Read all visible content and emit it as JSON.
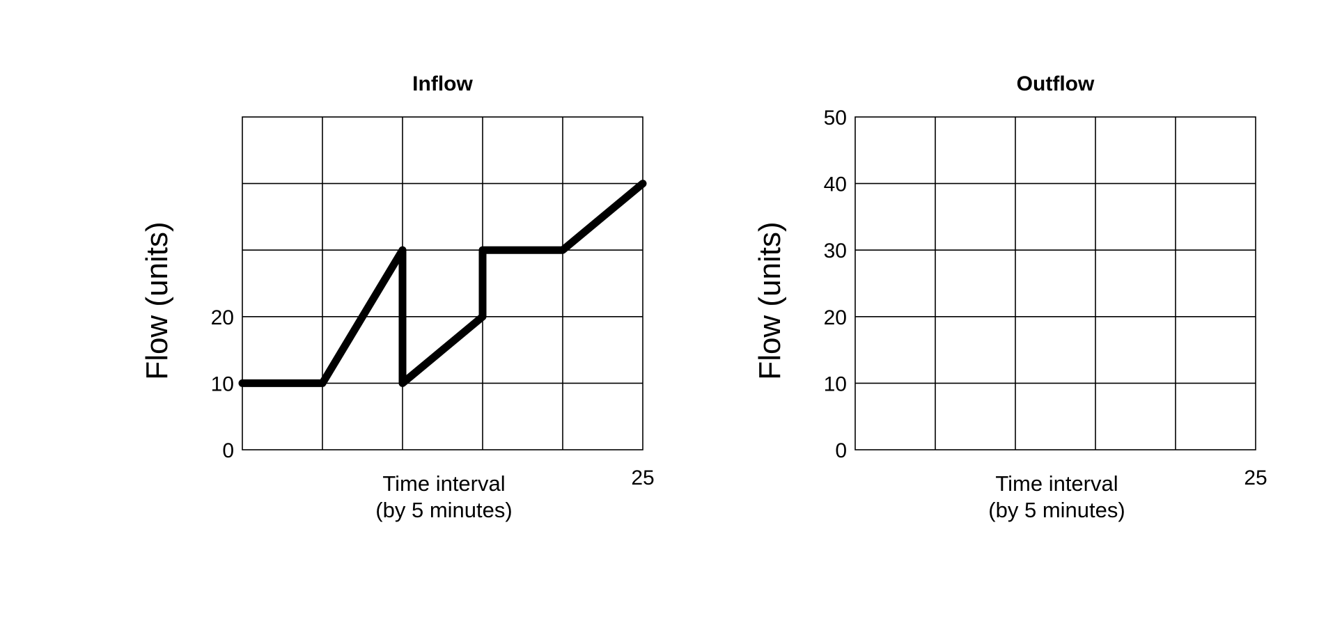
{
  "chart_data": [
    {
      "type": "line",
      "title": "Inflow",
      "xlabel": [
        "Time interval",
        "(by 5 minutes)"
      ],
      "ylabel": "Flow (units)",
      "xlim": [
        0,
        25
      ],
      "ylim": [
        0,
        50
      ],
      "grid": true,
      "x_tick_labels": [
        {
          "value": 25,
          "label": "25"
        }
      ],
      "y_tick_labels": [
        {
          "value": 0,
          "label": "0"
        },
        {
          "value": 10,
          "label": "10"
        },
        {
          "value": 20,
          "label": "20"
        }
      ],
      "series": [
        {
          "color": "#000000",
          "x": [
            0,
            5,
            10,
            10,
            15,
            15,
            20,
            25
          ],
          "y": [
            10,
            10,
            30,
            10,
            20,
            30,
            30,
            40
          ]
        }
      ]
    },
    {
      "type": "line",
      "title": "Outflow",
      "xlabel": [
        "Time interval",
        "(by 5 minutes)"
      ],
      "ylabel": "Flow (units)",
      "xlim": [
        0,
        25
      ],
      "ylim": [
        0,
        50
      ],
      "grid": true,
      "x_tick_labels": [
        {
          "value": 25,
          "label": "25"
        }
      ],
      "y_tick_labels": [
        {
          "value": 0,
          "label": "0"
        },
        {
          "value": 10,
          "label": "10"
        },
        {
          "value": 20,
          "label": "20"
        },
        {
          "value": 30,
          "label": "30"
        },
        {
          "value": 40,
          "label": "40"
        },
        {
          "value": 50,
          "label": "50"
        }
      ],
      "series": []
    }
  ]
}
